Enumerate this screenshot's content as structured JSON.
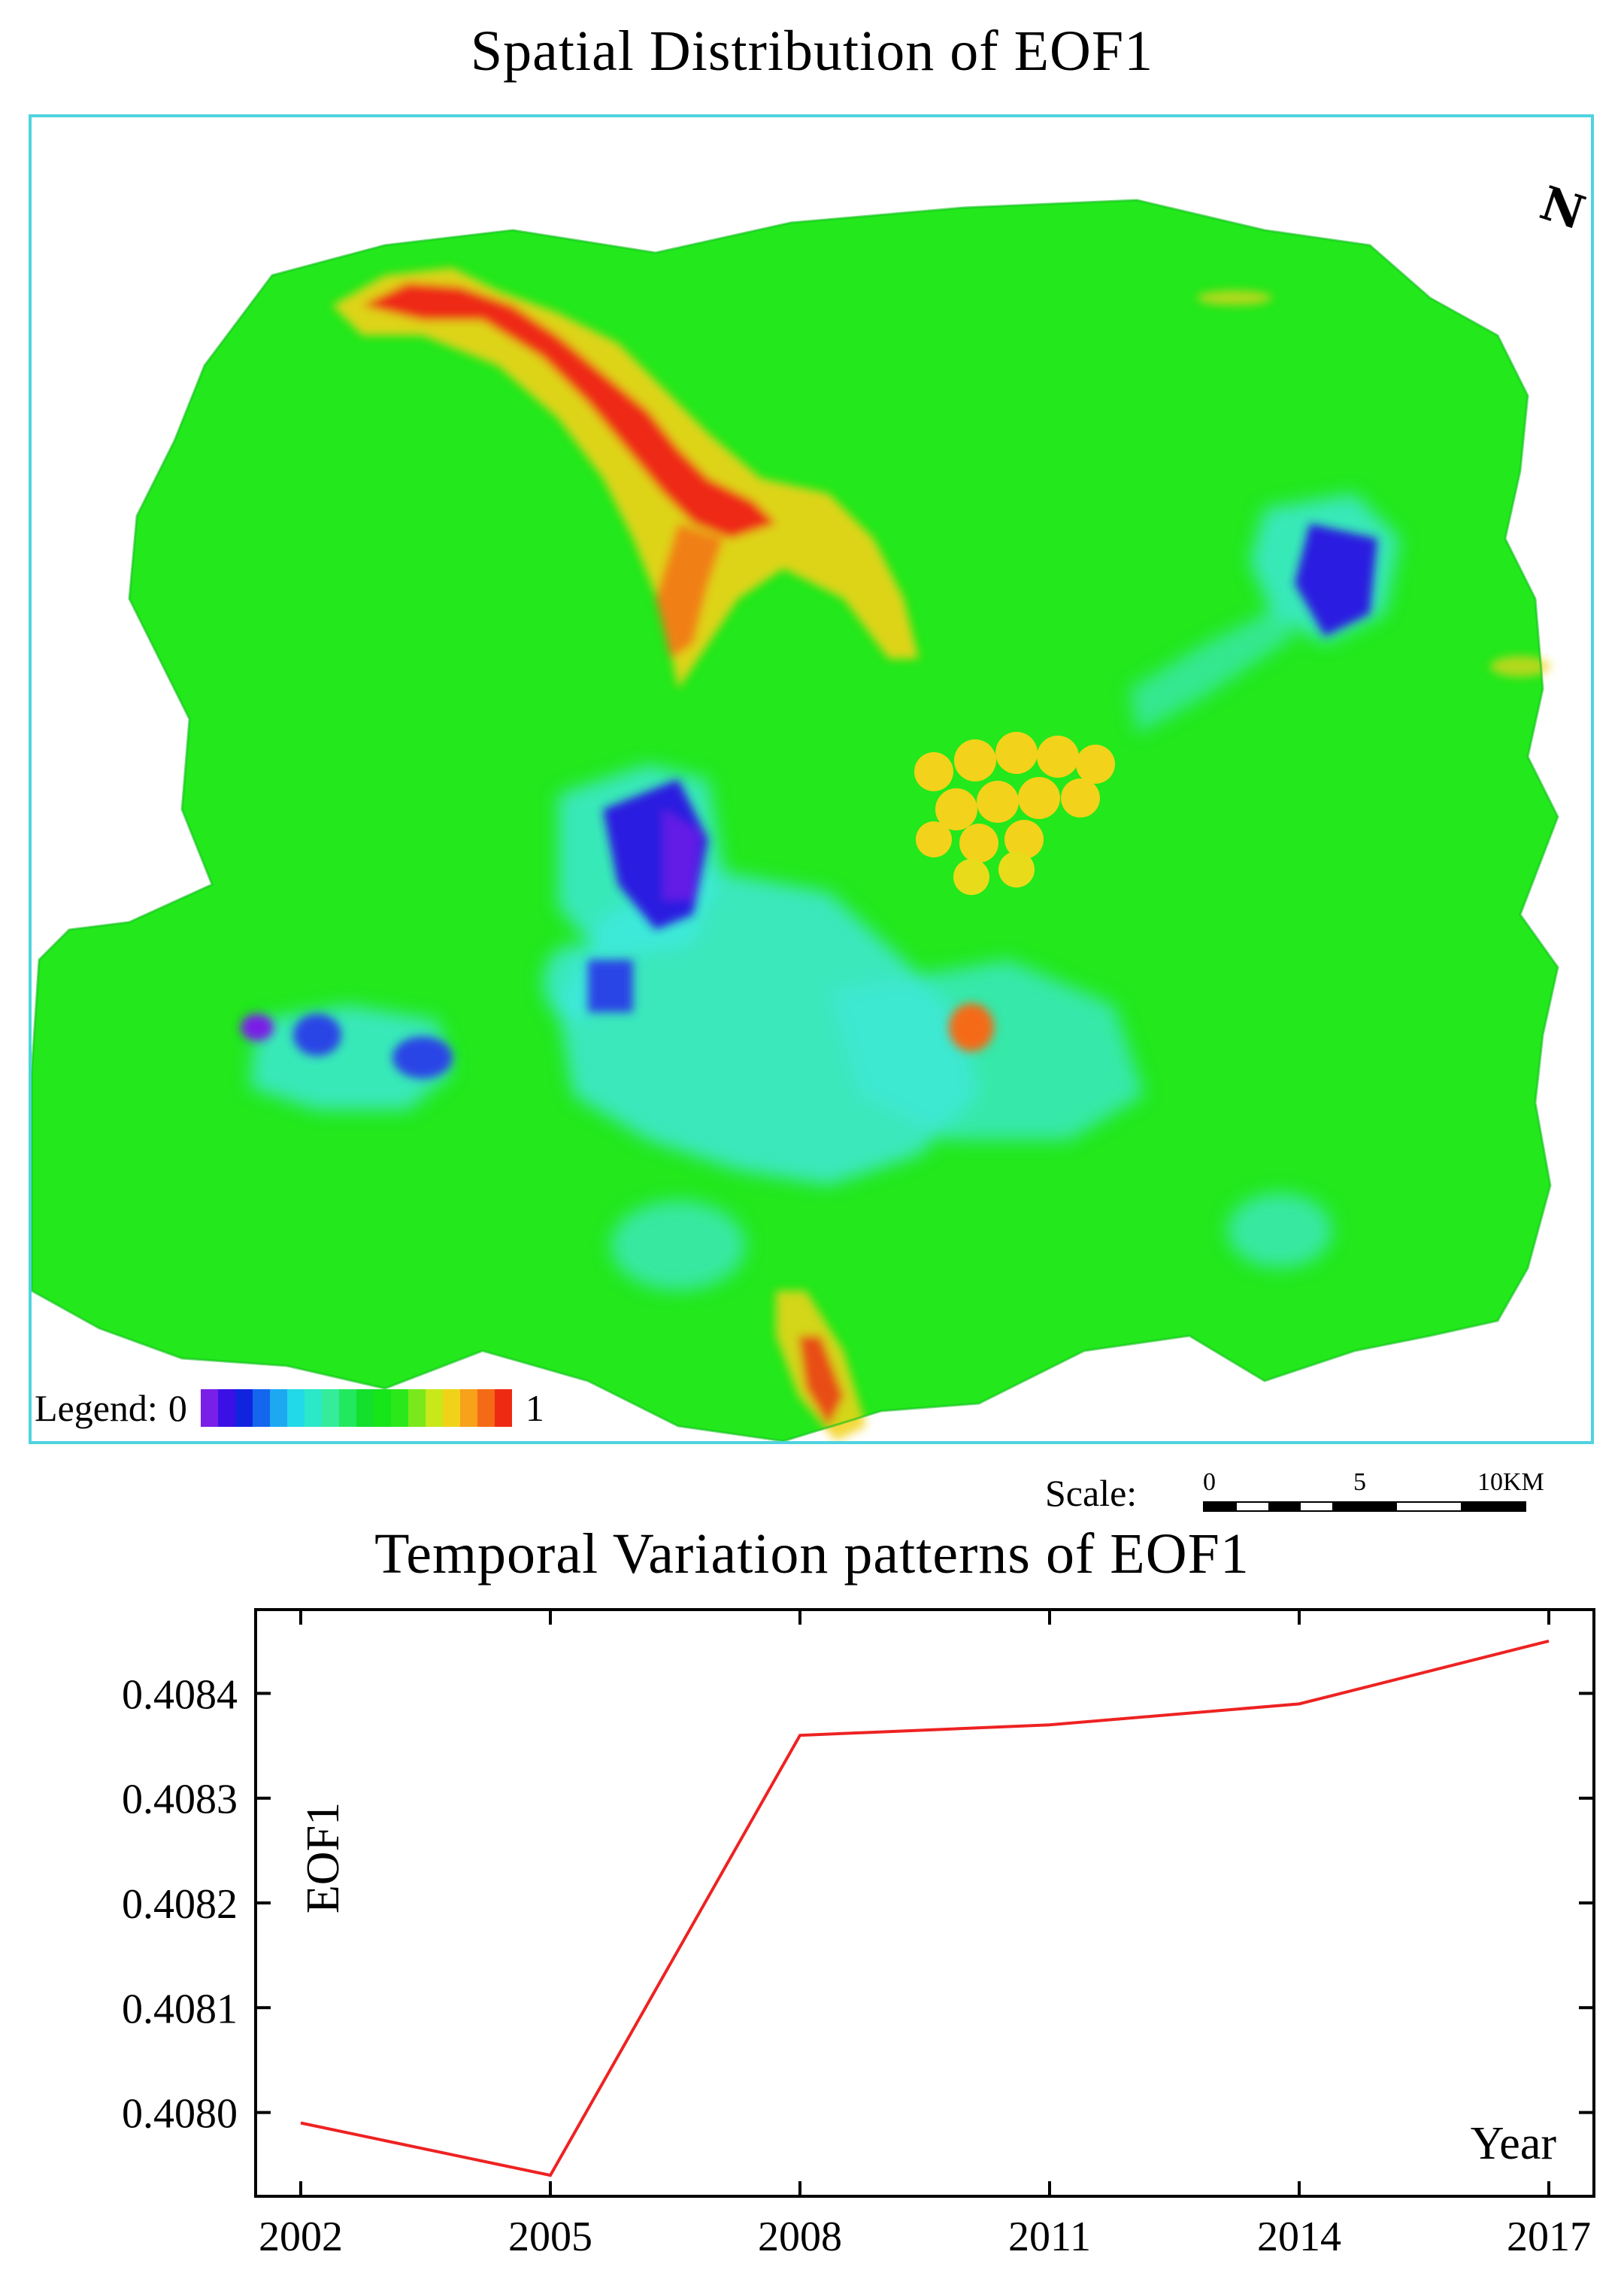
{
  "map": {
    "title": "Spatial Distribution of EOF1",
    "legend": {
      "label": "Legend:",
      "min_label": "0",
      "max_label": "1",
      "colors": [
        "#7a1fe8",
        "#3a10e6",
        "#1024e0",
        "#1466ee",
        "#1ea8f2",
        "#22d9e8",
        "#2be8c8",
        "#34ec9a",
        "#22e85e",
        "#12e02c",
        "#16e51a",
        "#2ae81a",
        "#7ae81a",
        "#c8e81a",
        "#f0d21a",
        "#f7a21a",
        "#f56a16",
        "#ee2a12"
      ]
    },
    "north_symbol": "N",
    "scale": {
      "label": "Scale:",
      "ticks": [
        "0",
        "5",
        "10KM"
      ]
    },
    "colors": {
      "frame": "#4fd3e0",
      "background": "#22e81c",
      "low": "#2a1de0",
      "mid_low": "#3fe8e0",
      "high": "#ee2a12",
      "mid_high": "#f2d21a"
    }
  },
  "chart_data": {
    "type": "line",
    "title": "Temporal Variation patterns of EOF1",
    "xlabel": "Year",
    "ylabel": "EOF1",
    "x": [
      2002,
      2005,
      2008,
      2011,
      2014,
      2017
    ],
    "series": [
      {
        "values": [
          0.40799,
          0.40794,
          0.40836,
          0.40837,
          0.40839,
          0.40845
        ],
        "color": "#ee2222"
      }
    ],
    "xticks": [
      "2002",
      "2005",
      "2008",
      "2011",
      "2014",
      "2017"
    ],
    "yticks": [
      "0.4080",
      "0.4081",
      "0.4082",
      "0.4083",
      "0.4084"
    ],
    "ylim": [
      0.40792,
      0.40848
    ],
    "xlim": [
      2002,
      2017
    ],
    "grid": false
  }
}
